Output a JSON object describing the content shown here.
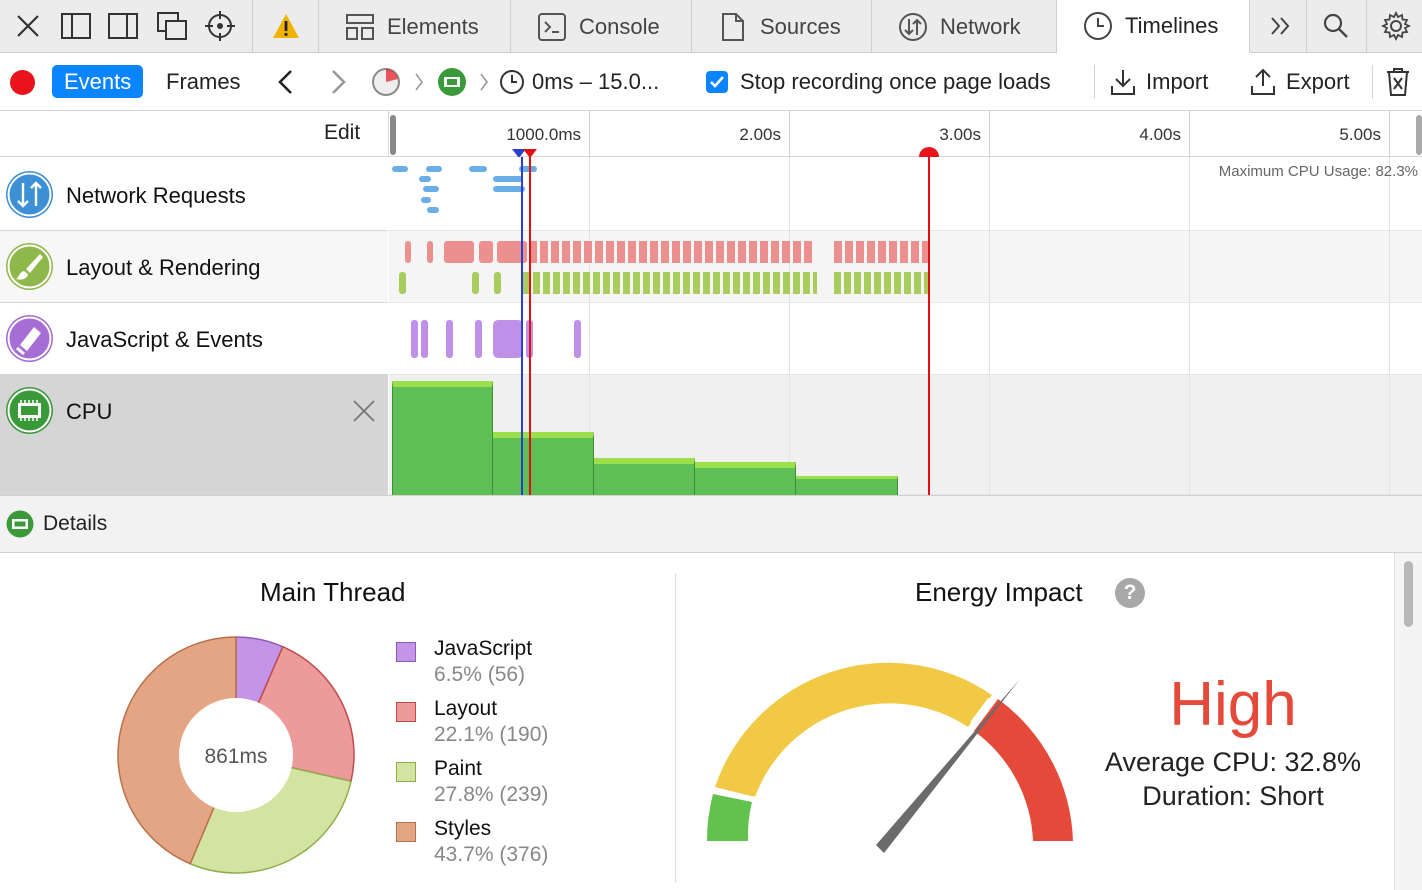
{
  "tabs": [
    {
      "label": "Elements",
      "icon": "elements-icon"
    },
    {
      "label": "Console",
      "icon": "console-icon"
    },
    {
      "label": "Sources",
      "icon": "sources-icon"
    },
    {
      "label": "Network",
      "icon": "network-icon"
    },
    {
      "label": "Timelines",
      "icon": "timelines-icon",
      "active": true
    }
  ],
  "toolbar": {
    "events_label": "Events",
    "frames_label": "Frames",
    "range_label": "0ms – 15.0...",
    "stop_recording_label": "Stop recording once page loads",
    "stop_recording_checked": true,
    "import_label": "Import",
    "export_label": "Export"
  },
  "ruler": {
    "edit_label": "Edit",
    "ticks": [
      "1000.0ms",
      "2.00s",
      "3.00s",
      "4.00s",
      "5.00s"
    ]
  },
  "timelines": [
    {
      "name": "Network Requests",
      "color": "#3d8fd6",
      "icon": "network-requests-icon"
    },
    {
      "name": "Layout & Rendering",
      "color": "#8fb84a",
      "icon": "paintbrush-icon"
    },
    {
      "name": "JavaScript & Events",
      "color": "#a66dd4",
      "icon": "script-icon"
    },
    {
      "name": "CPU",
      "color": "#3a9a3a",
      "icon": "cpu-icon",
      "selected": true
    }
  ],
  "cpu": {
    "max_label": "Maximum CPU Usage: 82.3%"
  },
  "details": {
    "label": "Details"
  },
  "main_thread": {
    "title": "Main Thread",
    "total": "861ms",
    "legend": [
      {
        "name": "JavaScript",
        "value": "6.5% (56)",
        "percent": 6.5,
        "color": "#c394e8",
        "border": "#8a5cb8"
      },
      {
        "name": "Layout",
        "value": "22.1% (190)",
        "percent": 22.1,
        "color": "#ec9a9a",
        "border": "#c24a4a"
      },
      {
        "name": "Paint",
        "value": "27.8% (239)",
        "percent": 27.8,
        "color": "#d2e3a2",
        "border": "#8fae4a"
      },
      {
        "name": "Styles",
        "value": "43.7% (376)",
        "percent": 43.7,
        "color": "#e3a583",
        "border": "#b8704a"
      }
    ]
  },
  "energy": {
    "title": "Energy Impact",
    "level": "High",
    "average_cpu": "Average CPU: 32.8%",
    "duration": "Duration: Short",
    "level_color": "#e4493a"
  }
}
